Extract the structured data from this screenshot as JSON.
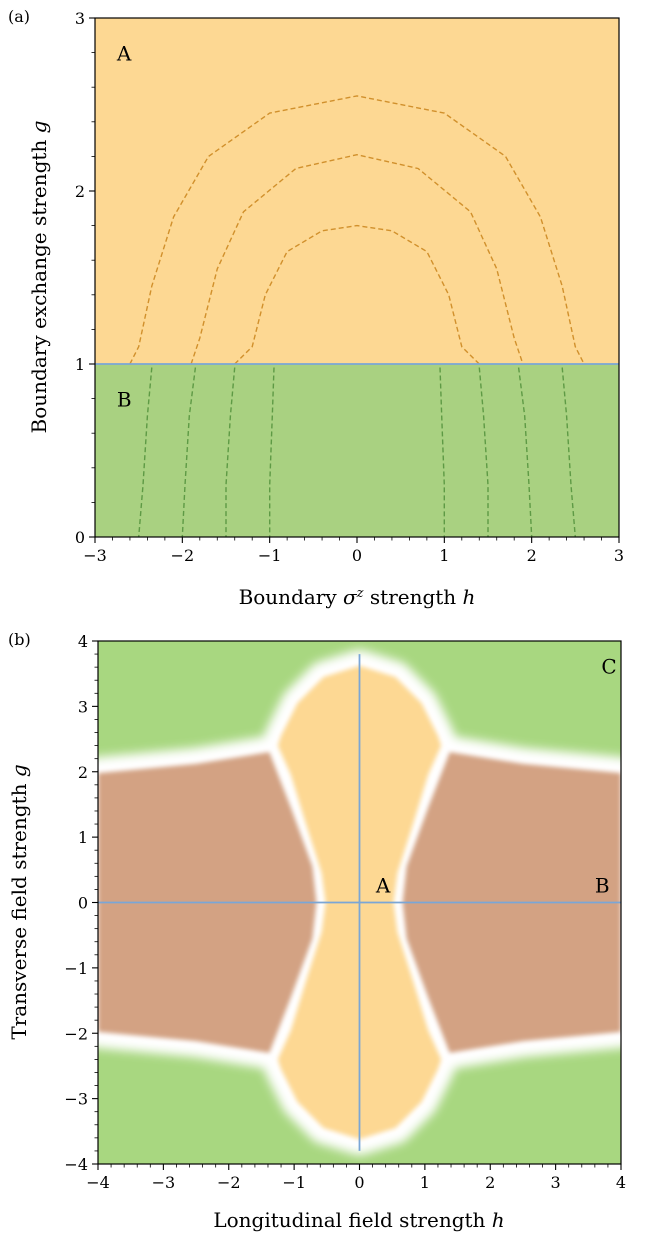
{
  "chart_data": [
    {
      "panel": "(a)",
      "type": "heatmap",
      "xlabel": "Boundary σ^z strength h",
      "ylabel": "Boundary exchange strength g",
      "xlim": [
        -3,
        3
      ],
      "ylim": [
        0,
        3
      ],
      "xticks": [
        -3,
        -2,
        -1,
        0,
        1,
        2,
        3
      ],
      "yticks": [
        0,
        1,
        2,
        3
      ],
      "grid": false,
      "regions": [
        {
          "label": "A",
          "color": "#fdd893",
          "g_range": [
            1,
            3
          ],
          "label_at": {
            "h": -2.75,
            "g": 2.8
          }
        },
        {
          "label": "B",
          "color": "#a9d181",
          "g_range": [
            0,
            1
          ],
          "label_at": {
            "h": -2.75,
            "g": 0.8
          }
        }
      ],
      "boundary_line": {
        "g": 1,
        "color": "#7aa6d6"
      },
      "contours_upper": [
        {
          "color": "#d1902c",
          "points": [
            [
              -2.6,
              1.0
            ],
            [
              -2.5,
              1.1
            ],
            [
              -2.35,
              1.45
            ],
            [
              -2.1,
              1.85
            ],
            [
              -1.7,
              2.2
            ],
            [
              -1.0,
              2.45
            ],
            [
              0,
              2.55
            ],
            [
              1.0,
              2.45
            ],
            [
              1.7,
              2.2
            ],
            [
              2.1,
              1.85
            ],
            [
              2.35,
              1.45
            ],
            [
              2.5,
              1.1
            ],
            [
              2.6,
              1.0
            ]
          ]
        },
        {
          "color": "#d1902c",
          "points": [
            [
              -1.9,
              1.0
            ],
            [
              -1.8,
              1.15
            ],
            [
              -1.6,
              1.55
            ],
            [
              -1.3,
              1.88
            ],
            [
              -0.7,
              2.13
            ],
            [
              0,
              2.21
            ],
            [
              0.7,
              2.13
            ],
            [
              1.3,
              1.88
            ],
            [
              1.6,
              1.55
            ],
            [
              1.8,
              1.15
            ],
            [
              1.9,
              1.0
            ]
          ]
        },
        {
          "color": "#d1902c",
          "points": [
            [
              -1.4,
              1.0
            ],
            [
              -1.2,
              1.1
            ],
            [
              -1.05,
              1.4
            ],
            [
              -0.8,
              1.65
            ],
            [
              -0.4,
              1.77
            ],
            [
              0,
              1.8
            ],
            [
              0.4,
              1.77
            ],
            [
              0.8,
              1.65
            ],
            [
              1.05,
              1.4
            ],
            [
              1.2,
              1.1
            ],
            [
              1.4,
              1.0
            ]
          ]
        }
      ],
      "contours_lower": [
        {
          "color": "#5e9a45",
          "points": [
            [
              -2.35,
              0.98
            ],
            [
              -2.4,
              0.7
            ],
            [
              -2.45,
              0.3
            ],
            [
              -2.5,
              0.0
            ]
          ]
        },
        {
          "color": "#5e9a45",
          "points": [
            [
              -1.85,
              0.98
            ],
            [
              -1.92,
              0.7
            ],
            [
              -1.97,
              0.3
            ],
            [
              -2.0,
              0.0
            ]
          ]
        },
        {
          "color": "#5e9a45",
          "points": [
            [
              -1.4,
              0.98
            ],
            [
              -1.45,
              0.7
            ],
            [
              -1.5,
              0.3
            ],
            [
              -1.5,
              0.0
            ]
          ]
        },
        {
          "color": "#5e9a45",
          "points": [
            [
              -0.95,
              0.98
            ],
            [
              -0.97,
              0.7
            ],
            [
              -1.0,
              0.3
            ],
            [
              -1.0,
              0.0
            ]
          ]
        },
        {
          "color": "#5e9a45",
          "points": [
            [
              0.95,
              0.98
            ],
            [
              0.97,
              0.7
            ],
            [
              1.0,
              0.3
            ],
            [
              1.0,
              0.0
            ]
          ]
        },
        {
          "color": "#5e9a45",
          "points": [
            [
              1.4,
              0.98
            ],
            [
              1.45,
              0.7
            ],
            [
              1.5,
              0.3
            ],
            [
              1.5,
              0.0
            ]
          ]
        },
        {
          "color": "#5e9a45",
          "points": [
            [
              1.85,
              0.98
            ],
            [
              1.92,
              0.7
            ],
            [
              1.97,
              0.3
            ],
            [
              2.0,
              0.0
            ]
          ]
        },
        {
          "color": "#5e9a45",
          "points": [
            [
              2.35,
              0.98
            ],
            [
              2.4,
              0.7
            ],
            [
              2.45,
              0.3
            ],
            [
              2.5,
              0.0
            ]
          ]
        }
      ]
    },
    {
      "panel": "(b)",
      "type": "heatmap",
      "xlabel": "Longitudinal field strength h",
      "ylabel": "Transverse field strength g",
      "xlim": [
        -4,
        4
      ],
      "ylim": [
        -4,
        4
      ],
      "xticks": [
        -4,
        -3,
        -2,
        -1,
        0,
        1,
        2,
        3,
        4
      ],
      "yticks": [
        -4,
        -3,
        -2,
        -1,
        0,
        1,
        2,
        3,
        4
      ],
      "grid": false,
      "colors": {
        "green": "#a8d780",
        "orange": "#fdd893",
        "brown": "#d3a283",
        "boundary": "#ffffff"
      },
      "orange_region": [
        [
          0,
          3.62
        ],
        [
          0.55,
          3.45
        ],
        [
          0.95,
          3.05
        ],
        [
          1.2,
          2.55
        ],
        [
          1.25,
          2.4
        ],
        [
          1.05,
          1.95
        ],
        [
          0.82,
          1.2
        ],
        [
          0.58,
          0.45
        ],
        [
          0.52,
          0
        ],
        [
          0.58,
          -0.45
        ],
        [
          0.82,
          -1.2
        ],
        [
          1.05,
          -1.95
        ],
        [
          1.25,
          -2.4
        ],
        [
          1.2,
          -2.55
        ],
        [
          0.95,
          -3.05
        ],
        [
          0.55,
          -3.45
        ],
        [
          0,
          -3.62
        ],
        [
          -0.55,
          -3.45
        ],
        [
          -0.95,
          -3.05
        ],
        [
          -1.2,
          -2.55
        ],
        [
          -1.25,
          -2.4
        ],
        [
          -1.05,
          -1.95
        ],
        [
          -0.82,
          -1.2
        ],
        [
          -0.58,
          -0.45
        ],
        [
          -0.52,
          0
        ],
        [
          -0.58,
          0.45
        ],
        [
          -0.82,
          1.2
        ],
        [
          -1.05,
          1.95
        ],
        [
          -1.25,
          2.4
        ],
        [
          -1.2,
          2.55
        ],
        [
          -0.95,
          3.05
        ],
        [
          -0.55,
          3.45
        ]
      ],
      "brown_region_right": [
        [
          1.38,
          2.3
        ],
        [
          2.5,
          2.12
        ],
        [
          4,
          1.98
        ],
        [
          4,
          -1.98
        ],
        [
          2.5,
          -2.12
        ],
        [
          1.38,
          -2.3
        ],
        [
          1.05,
          -1.45
        ],
        [
          0.72,
          -0.55
        ],
        [
          0.66,
          0
        ],
        [
          0.72,
          0.55
        ],
        [
          1.05,
          1.45
        ]
      ],
      "brown_region_left": [
        [
          -1.38,
          2.3
        ],
        [
          -2.5,
          2.12
        ],
        [
          -4,
          1.98
        ],
        [
          -4,
          -1.98
        ],
        [
          -2.5,
          -2.12
        ],
        [
          -1.38,
          -2.3
        ],
        [
          -1.05,
          -1.45
        ],
        [
          -0.72,
          -0.55
        ],
        [
          -0.66,
          0
        ],
        [
          -0.72,
          0.55
        ],
        [
          -1.05,
          1.45
        ]
      ],
      "lines": [
        {
          "orientation": "vertical",
          "h": 0,
          "g_range": [
            -3.8,
            3.8
          ],
          "color": "#7aa6d6"
        },
        {
          "orientation": "horizontal",
          "g": 0,
          "h_range": [
            -4,
            4
          ],
          "color": "#7aa6d6"
        }
      ],
      "annotations": [
        {
          "label": "A",
          "h": 0.25,
          "g": 0.15
        },
        {
          "label": "B",
          "h": 3.6,
          "g": 0.15
        },
        {
          "label": "C",
          "h": 3.7,
          "g": 3.5
        }
      ]
    }
  ]
}
